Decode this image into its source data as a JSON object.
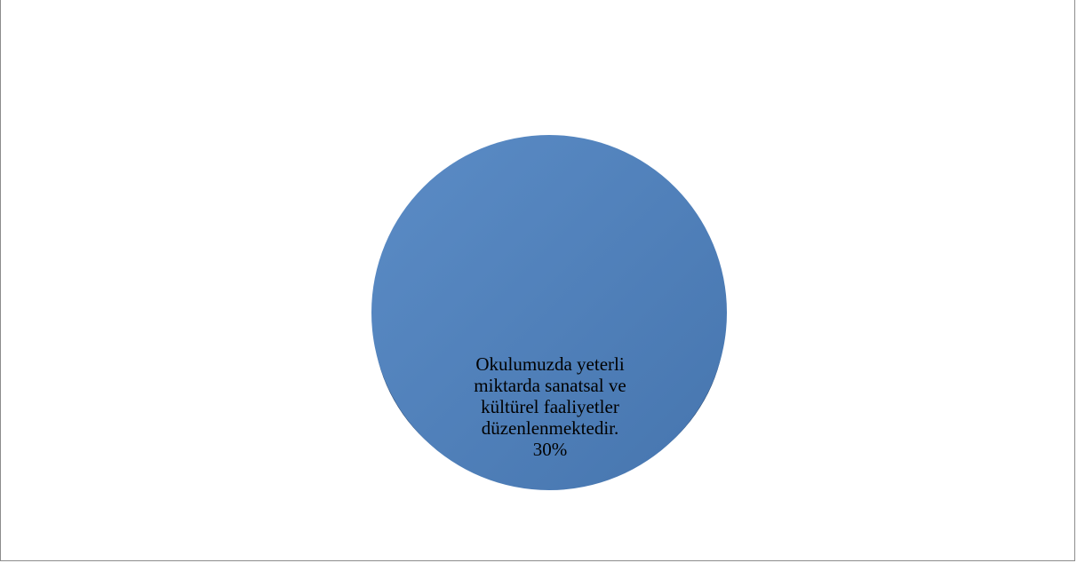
{
  "chart_data": {
    "type": "pie",
    "title": "",
    "slices": [
      {
        "label_lines": [
          "Okulumuzda yeterli",
          "miktarda sanatsal ve",
          "kültürel faaliyetler",
          "düzenlenmektedir."
        ],
        "percent_label": "30%",
        "value": 30,
        "color": "#4f81bd"
      }
    ],
    "legend": "none"
  }
}
